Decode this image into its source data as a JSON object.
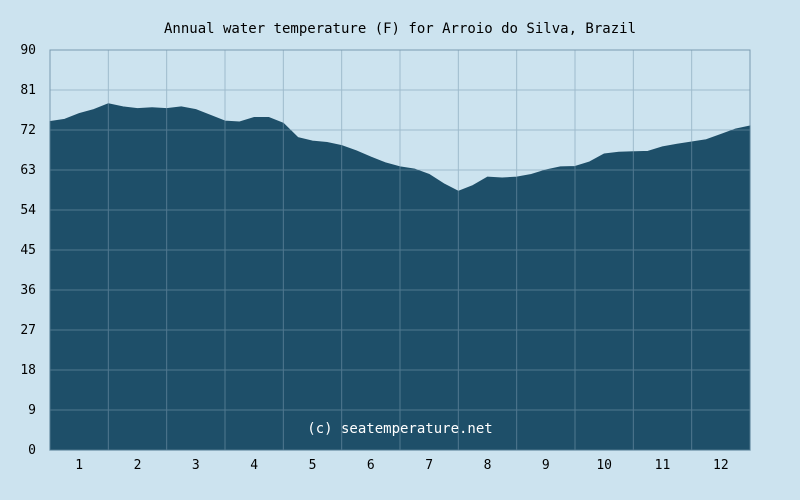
{
  "chart_data": {
    "type": "area",
    "title": "Annual water temperature (F) for Arroio do Silva, Brazil",
    "watermark": "(c) seatemperature.net",
    "xlabel": "",
    "ylabel": "",
    "x_tick_labels": [
      "1",
      "2",
      "3",
      "4",
      "5",
      "6",
      "7",
      "8",
      "9",
      "10",
      "11",
      "12"
    ],
    "y_tick_labels": [
      "0",
      "9",
      "18",
      "27",
      "36",
      "45",
      "54",
      "63",
      "72",
      "81",
      "90"
    ],
    "ylim": [
      0,
      90
    ],
    "xlim": [
      0,
      12
    ],
    "grid": true,
    "legend": "none",
    "colors": {
      "background": "#cce3ef",
      "fill": "#1e4f69",
      "grid": "#7a9bb0",
      "text": "#000000",
      "watermark": "#ffffff"
    },
    "series": [
      {
        "x": [
          0,
          0.25,
          0.5,
          0.75,
          1.0,
          1.25,
          1.5,
          1.75,
          2.0,
          2.25,
          2.5,
          2.75,
          3.0,
          3.25,
          3.5,
          3.75,
          4.0,
          4.25,
          4.5,
          4.75,
          5.0,
          5.25,
          5.5,
          5.75,
          6.0,
          6.25,
          6.5,
          6.75,
          7.0,
          7.25,
          7.5,
          7.75,
          8.0,
          8.25,
          8.5,
          8.75,
          9.0,
          9.25,
          9.5,
          9.75,
          10.0,
          10.25,
          10.5,
          10.75,
          11.0,
          11.25,
          11.5,
          11.75,
          12.0
        ],
        "values": [
          73.9,
          74.4,
          75.7,
          76.6,
          77.9,
          77.2,
          76.8,
          77.0,
          76.8,
          77.2,
          76.6,
          75.3,
          74.0,
          73.8,
          74.8,
          74.8,
          73.5,
          70.3,
          69.5,
          69.2,
          68.5,
          67.3,
          65.9,
          64.6,
          63.7,
          63.2,
          62.0,
          59.9,
          58.2,
          59.5,
          61.4,
          61.2,
          61.4,
          62.0,
          63.0,
          63.7,
          63.8,
          64.8,
          66.6,
          67.0,
          67.1,
          67.2,
          68.2,
          68.8,
          69.3,
          69.8,
          71.0,
          72.2,
          72.9
        ]
      }
    ]
  }
}
